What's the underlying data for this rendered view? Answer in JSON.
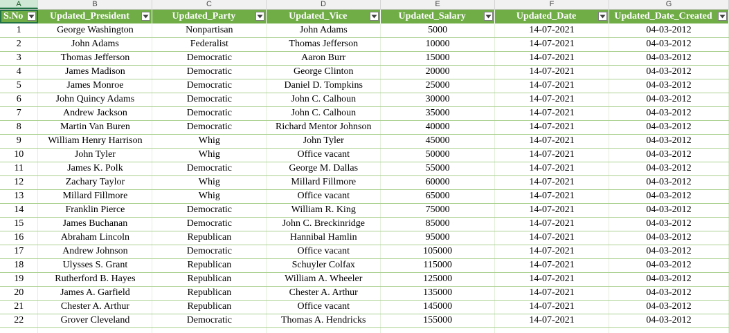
{
  "columns": [
    "A",
    "B",
    "C",
    "D",
    "E",
    "F",
    "G"
  ],
  "headers": [
    "S.No",
    "Updated_President",
    "Updated_Party",
    "Updated_Vice",
    "Updated_Salary",
    "Updated_Date",
    "Updated_Date_Created"
  ],
  "rows": [
    [
      "1",
      "George Washington",
      "Nonpartisan",
      "John Adams",
      "5000",
      "14-07-2021",
      "04-03-2012"
    ],
    [
      "2",
      "John Adams",
      "Federalist",
      "Thomas Jefferson",
      "10000",
      "14-07-2021",
      "04-03-2012"
    ],
    [
      "3",
      "Thomas Jefferson",
      "Democratic",
      "Aaron Burr",
      "15000",
      "14-07-2021",
      "04-03-2012"
    ],
    [
      "4",
      "James Madison",
      "Democratic",
      "George Clinton",
      "20000",
      "14-07-2021",
      "04-03-2012"
    ],
    [
      "5",
      "James Monroe",
      "Democratic",
      "Daniel D. Tompkins",
      "25000",
      "14-07-2021",
      "04-03-2012"
    ],
    [
      "6",
      "John Quincy Adams",
      "Democratic",
      "John C. Calhoun",
      "30000",
      "14-07-2021",
      "04-03-2012"
    ],
    [
      "7",
      "Andrew Jackson",
      "Democratic",
      "John C. Calhoun",
      "35000",
      "14-07-2021",
      "04-03-2012"
    ],
    [
      "8",
      "Martin Van Buren",
      "Democratic",
      "Richard Mentor Johnson",
      "40000",
      "14-07-2021",
      "04-03-2012"
    ],
    [
      "9",
      "William Henry Harrison",
      "Whig",
      "John Tyler",
      "45000",
      "14-07-2021",
      "04-03-2012"
    ],
    [
      "10",
      "John Tyler",
      "Whig",
      "Office vacant",
      "50000",
      "14-07-2021",
      "04-03-2012"
    ],
    [
      "11",
      "James K. Polk",
      "Democratic",
      "George M. Dallas",
      "55000",
      "14-07-2021",
      "04-03-2012"
    ],
    [
      "12",
      "Zachary Taylor",
      "Whig",
      "Millard Fillmore",
      "60000",
      "14-07-2021",
      "04-03-2012"
    ],
    [
      "13",
      "Millard Fillmore",
      "Whig",
      "Office vacant",
      "65000",
      "14-07-2021",
      "04-03-2012"
    ],
    [
      "14",
      "Franklin Pierce",
      "Democratic",
      "William R. King",
      "75000",
      "14-07-2021",
      "04-03-2012"
    ],
    [
      "15",
      "James Buchanan",
      "Democratic",
      "John C. Breckinridge",
      "85000",
      "14-07-2021",
      "04-03-2012"
    ],
    [
      "16",
      "Abraham Lincoln",
      "Republican",
      "Hannibal Hamlin",
      "95000",
      "14-07-2021",
      "04-03-2012"
    ],
    [
      "17",
      "Andrew Johnson",
      "Democratic",
      "Office vacant",
      "105000",
      "14-07-2021",
      "04-03-2012"
    ],
    [
      "18",
      "Ulysses S. Grant",
      "Republican",
      "Schuyler Colfax",
      "115000",
      "14-07-2021",
      "04-03-2012"
    ],
    [
      "19",
      "Rutherford B. Hayes",
      "Republican",
      "William A. Wheeler",
      "125000",
      "14-07-2021",
      "04-03-2012"
    ],
    [
      "20",
      "James A. Garfield",
      "Republican",
      "Chester A. Arthur",
      "135000",
      "14-07-2021",
      "04-03-2012"
    ],
    [
      "21",
      "Chester A. Arthur",
      "Republican",
      "Office vacant",
      "145000",
      "14-07-2021",
      "04-03-2012"
    ],
    [
      "22",
      "Grover Cleveland",
      "Democratic",
      "Thomas A. Hendricks",
      "155000",
      "14-07-2021",
      "04-03-2012"
    ]
  ],
  "colors": {
    "header_bg": "#70ad47",
    "header_text": "#ffffff",
    "row_border": "#a9d08e",
    "selection": "#217346"
  },
  "icons": {
    "filter": "filter-dropdown-icon"
  }
}
